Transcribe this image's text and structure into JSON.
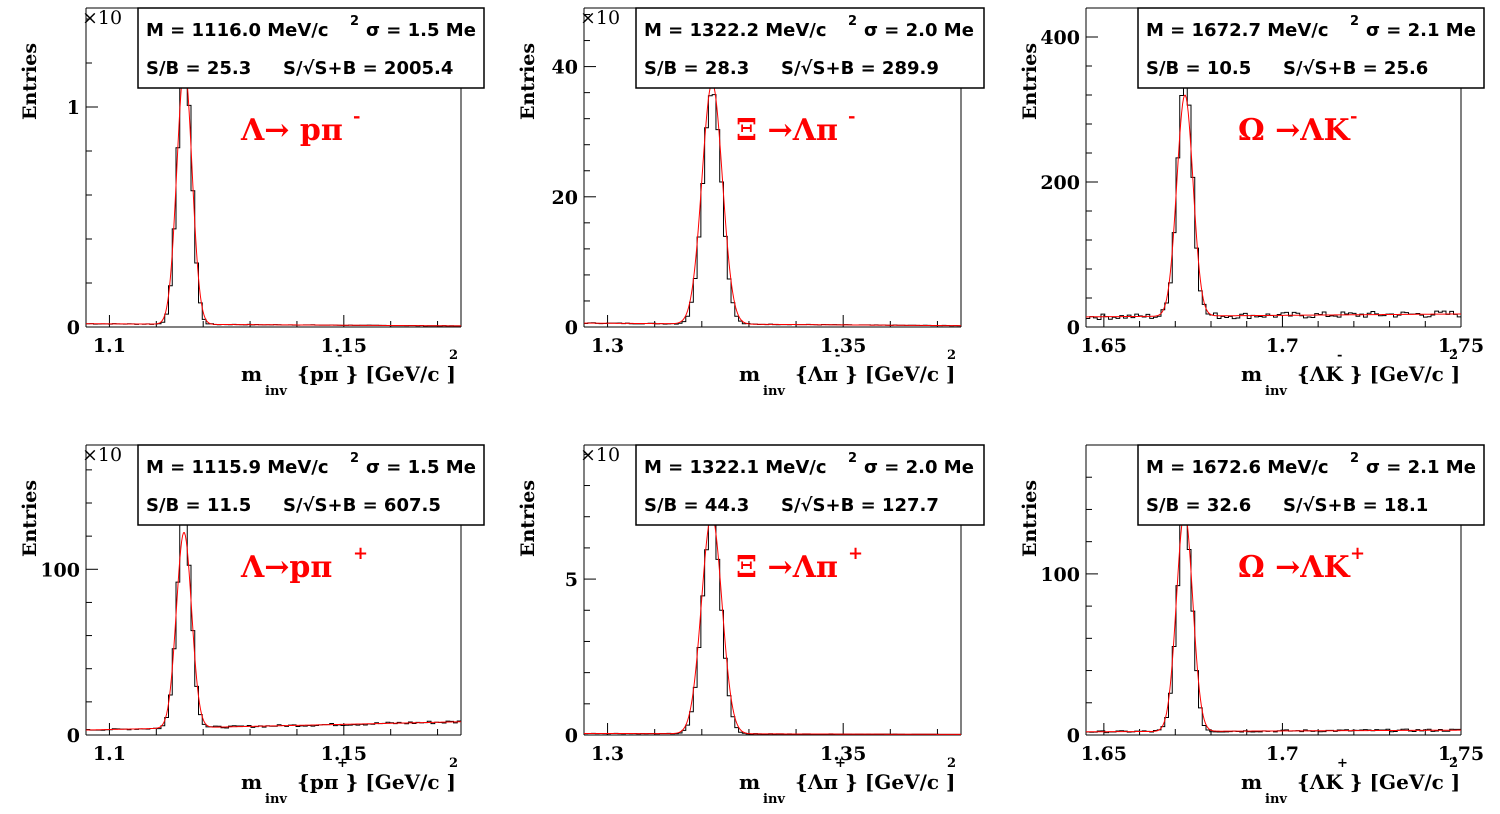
{
  "figure": {
    "ylabel": "Entries",
    "colors": {
      "histogram": "#000000",
      "fit": "#ff0000"
    }
  },
  "chart_data": [
    {
      "type": "histogram",
      "decay": "Λ→ pπ",
      "decay_charge": "-",
      "xlabel_main": "m",
      "xlabel_sub": "inv",
      "xlabel_rest": "{pπ } [GeV/c ]",
      "xlabel_sup": "-",
      "xlabel_sup2": "2",
      "ylabel": "Entries",
      "y_exponent": "×10",
      "stat_mass": "M = 1116.0 MeV/c",
      "stat_sigma": "σ = 1.5 Me",
      "stat_sb": "S/B = 25.3",
      "stat_signif": "S/√S+B = 2005.4",
      "xlim": [
        1.095,
        1.175
      ],
      "ylim": [
        0,
        1.45
      ],
      "x_ticks": [
        1.1,
        1.15
      ],
      "x_tick_labels": [
        "1.1",
        "1.15"
      ],
      "y_ticks": [
        0,
        1
      ],
      "y_tick_labels": [
        "0",
        "1"
      ],
      "peak": {
        "mean": 1.116,
        "sigma": 0.0015,
        "height": 1.25,
        "fit_height": 1.17,
        "background": 0.015,
        "bg_end": 0.005
      }
    },
    {
      "type": "histogram",
      "decay": "Ξ →Λπ",
      "decay_charge": "-",
      "xlabel_main": "m",
      "xlabel_sub": "inv",
      "xlabel_rest": "{Λπ } [GeV/c ]",
      "xlabel_sup": "-",
      "xlabel_sup2": "2",
      "ylabel": "Entries",
      "y_exponent": "×10",
      "stat_mass": "M = 1322.2 MeV/c",
      "stat_sigma": "σ = 2.0 Me",
      "stat_sb": "S/B = 28.3",
      "stat_signif": "S/√S+B = 289.9",
      "xlim": [
        1.295,
        1.375
      ],
      "ylim": [
        0,
        49
      ],
      "x_ticks": [
        1.3,
        1.35
      ],
      "x_tick_labels": [
        "1.3",
        "1.35"
      ],
      "y_ticks": [
        0,
        20,
        40
      ],
      "y_tick_labels": [
        "0",
        "20",
        "40"
      ],
      "peak": {
        "mean": 1.3222,
        "sigma": 0.002,
        "height": 36,
        "fit_height": 37,
        "background": 0.6,
        "bg_end": 0.2
      }
    },
    {
      "type": "histogram",
      "decay": "Ω →ΛK",
      "decay_charge": "-",
      "xlabel_main": "m",
      "xlabel_sub": "inv",
      "xlabel_rest": "{ΛK } [GeV/c ]",
      "xlabel_sup": "-",
      "xlabel_sup2": "2",
      "ylabel": "Entries",
      "y_exponent": "",
      "stat_mass": "M = 1672.7 MeV/c",
      "stat_sigma": "σ = 2.1 Me",
      "stat_sb": "S/B = 10.5",
      "stat_signif": "S/√S+B = 25.6",
      "xlim": [
        1.645,
        1.75
      ],
      "ylim": [
        0,
        440
      ],
      "x_ticks": [
        1.65,
        1.7,
        1.75
      ],
      "x_tick_labels": [
        "1.65",
        "1.7",
        "1.75"
      ],
      "y_ticks": [
        0,
        200,
        400
      ],
      "y_tick_labels": [
        "0",
        "200",
        "400"
      ],
      "peak": {
        "mean": 1.6727,
        "sigma": 0.0021,
        "height": 340,
        "fit_height": 305,
        "background": 14,
        "bg_end": 18
      }
    },
    {
      "type": "histogram",
      "decay": "Λ→pπ",
      "decay_charge": "+",
      "xlabel_main": "m",
      "xlabel_sub": "inv",
      "xlabel_rest": "{pπ } [GeV/c ]",
      "xlabel_sup": "+",
      "xlabel_sup2": "2",
      "ylabel": "Entries",
      "y_exponent": "×10",
      "stat_mass": "M = 1115.9 MeV/c",
      "stat_sigma": "σ = 1.5 Me",
      "stat_sb": "S/B = 11.5",
      "stat_signif": "S/√S+B = 607.5",
      "xlim": [
        1.095,
        1.175
      ],
      "ylim": [
        0,
        175
      ],
      "x_ticks": [
        1.1,
        1.15
      ],
      "x_tick_labels": [
        "1.1",
        "1.15"
      ],
      "y_ticks": [
        0,
        100
      ],
      "y_tick_labels": [
        "0",
        "100"
      ],
      "peak": {
        "mean": 1.1159,
        "sigma": 0.0015,
        "height": 130,
        "fit_height": 118,
        "background": 3,
        "bg_end": 8
      }
    },
    {
      "type": "histogram",
      "decay": "Ξ →Λπ",
      "decay_charge": "+",
      "xlabel_main": "m",
      "xlabel_sub": "inv",
      "xlabel_rest": "{Λπ } [GeV/c ]",
      "xlabel_sup": "+",
      "xlabel_sup2": "2",
      "ylabel": "Entries",
      "y_exponent": "×10",
      "stat_mass": "M = 1322.1 MeV/c",
      "stat_sigma": "σ = 2.0 Me",
      "stat_sb": "S/B = 44.3",
      "stat_signif": "S/√S+B = 127.7",
      "xlim": [
        1.295,
        1.375
      ],
      "ylim": [
        0,
        9.3
      ],
      "x_ticks": [
        1.3,
        1.35
      ],
      "x_tick_labels": [
        "1.3",
        "1.35"
      ],
      "y_ticks": [
        0,
        5
      ],
      "y_tick_labels": [
        "0",
        "5"
      ],
      "peak": {
        "mean": 1.3221,
        "sigma": 0.002,
        "height": 6.9,
        "fit_height": 7.0,
        "background": 0.05,
        "bg_end": 0.02
      }
    },
    {
      "type": "histogram",
      "decay": "Ω →ΛK",
      "decay_charge": "+",
      "xlabel_main": "m",
      "xlabel_sub": "inv",
      "xlabel_rest": "{ΛK } [GeV/c ]",
      "xlabel_sup": "+",
      "xlabel_sup2": "2",
      "ylabel": "Entries",
      "y_exponent": "",
      "stat_mass": "M = 1672.6 MeV/c",
      "stat_sigma": "σ = 2.1 Me",
      "stat_sb": "S/B = 32.6",
      "stat_signif": "S/√S+B = 18.1",
      "xlim": [
        1.645,
        1.75
      ],
      "ylim": [
        0,
        180
      ],
      "x_ticks": [
        1.65,
        1.7,
        1.75
      ],
      "x_tick_labels": [
        "1.65",
        "1.7",
        "1.75"
      ],
      "y_ticks": [
        0,
        100
      ],
      "y_tick_labels": [
        "0",
        "100"
      ],
      "peak": {
        "mean": 1.6726,
        "sigma": 0.0021,
        "height": 138,
        "fit_height": 136,
        "background": 2,
        "bg_end": 3
      }
    }
  ]
}
